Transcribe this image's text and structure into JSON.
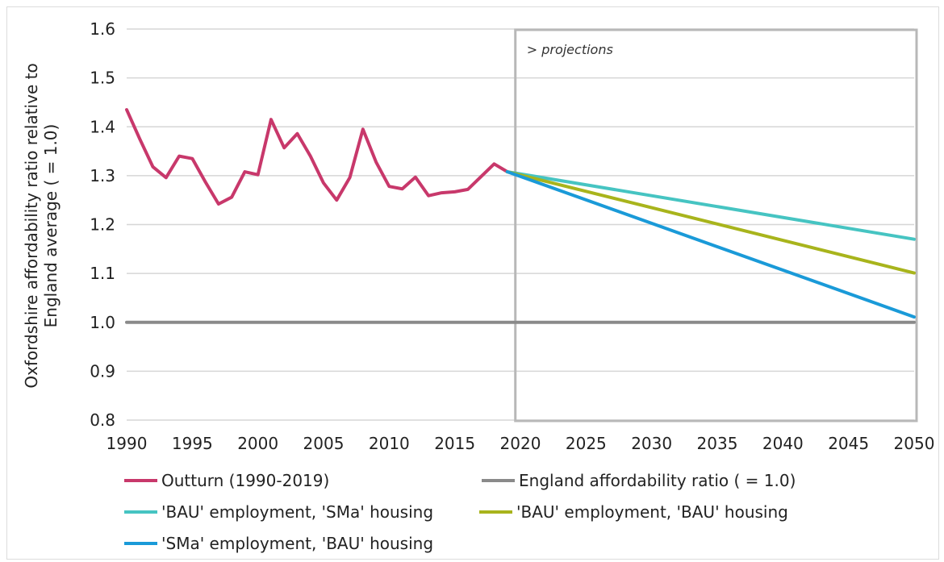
{
  "chart_data": {
    "type": "line",
    "ylabel_lines": [
      "Oxfordshire affordability ratio relative to",
      "England average ( = 1.0)"
    ],
    "xlim": [
      1990,
      2050
    ],
    "ylim": [
      0.8,
      1.6
    ],
    "x_ticks": [
      1990,
      1995,
      2000,
      2005,
      2010,
      2015,
      2020,
      2025,
      2030,
      2035,
      2040,
      2045,
      2050
    ],
    "y_ticks": [
      "0.8",
      "0.9",
      "1.0",
      "1.1",
      "1.2",
      "1.3",
      "1.4",
      "1.5",
      "1.6"
    ],
    "grid": "horizontal",
    "annotation": {
      "text": "> projections",
      "x_start": 2019,
      "x_end": 2050
    },
    "series": [
      {
        "name": "Outturn (1990-2019)",
        "color": "#c8386b",
        "x": [
          1990,
          1991,
          1992,
          1993,
          1994,
          1995,
          1996,
          1997,
          1998,
          1999,
          2000,
          2001,
          2002,
          2003,
          2004,
          2005,
          2006,
          2007,
          2008,
          2009,
          2010,
          2011,
          2012,
          2013,
          2014,
          2015,
          2016,
          2017,
          2018,
          2019
        ],
        "y": [
          1.435,
          1.375,
          1.318,
          1.296,
          1.34,
          1.335,
          1.287,
          1.242,
          1.256,
          1.308,
          1.302,
          1.415,
          1.357,
          1.386,
          1.34,
          1.285,
          1.25,
          1.296,
          1.395,
          1.328,
          1.278,
          1.273,
          1.297,
          1.259,
          1.265,
          1.267,
          1.272,
          1.298,
          1.324,
          1.308
        ]
      },
      {
        "name": "England affordability ratio ( = 1.0)",
        "color": "#8a8a8a",
        "x": [
          1990,
          2050
        ],
        "y": [
          1.0,
          1.0
        ]
      },
      {
        "name": "'BAU' employment, 'SMa' housing",
        "color": "#46c4c2",
        "x": [
          2019,
          2050
        ],
        "y": [
          1.308,
          1.17
        ]
      },
      {
        "name": "'BAU' employment, 'BAU' housing",
        "color": "#a8b41c",
        "x": [
          2019,
          2050
        ],
        "y": [
          1.308,
          1.101
        ]
      },
      {
        "name": "'SMa' employment, 'BAU' housing",
        "color": "#1a9ad8",
        "x": [
          2019,
          2050
        ],
        "y": [
          1.308,
          1.011
        ]
      }
    ],
    "legend": "bottom"
  }
}
